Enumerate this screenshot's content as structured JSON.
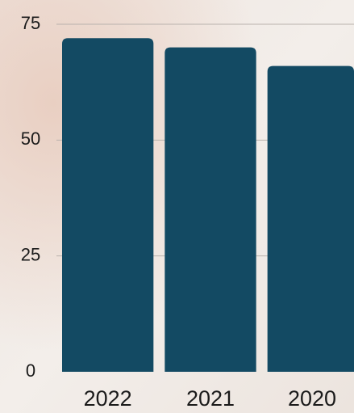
{
  "chart_data": {
    "type": "bar",
    "categories": [
      "2022",
      "2021",
      "2020"
    ],
    "values": [
      72,
      70,
      66
    ],
    "color": "#134a63",
    "ylim": [
      0,
      75
    ],
    "yticks": [
      0,
      25,
      50,
      75
    ],
    "grid": true
  }
}
